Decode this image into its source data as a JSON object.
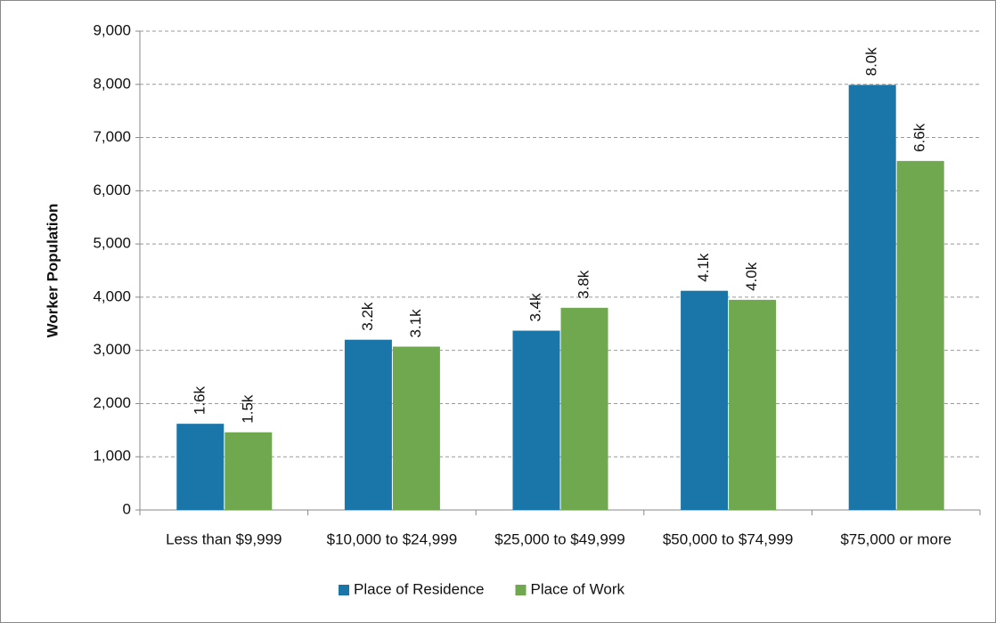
{
  "chart_data": {
    "type": "bar",
    "ylabel": "Worker Population",
    "categories": [
      "Less than $9,999",
      "$10,000 to $24,999",
      "$25,000 to $49,999",
      "$50,000 to $74,999",
      "$75,000 or more"
    ],
    "series": [
      {
        "name": "Place of Residence",
        "color": "#1a75a8",
        "values": [
          1620,
          3200,
          3370,
          4120,
          7990
        ],
        "value_labels": [
          "1.6k",
          "3.2k",
          "3.4k",
          "4.1k",
          "8.0k"
        ]
      },
      {
        "name": "Place of Work",
        "color": "#70a84f",
        "values": [
          1460,
          3070,
          3800,
          3950,
          6560
        ],
        "value_labels": [
          "1.5k",
          "3.1k",
          "3.8k",
          "4.0k",
          "6.6k"
        ]
      }
    ],
    "ylim": [
      0,
      9000
    ],
    "yticks": [
      0,
      {
        "value": 1000,
        "label": "1,000"
      },
      {
        "value": 2000,
        "label": "2,000"
      },
      {
        "value": 3000,
        "label": "3,000"
      },
      {
        "value": 4000,
        "label": "4,000"
      },
      {
        "value": 5000,
        "label": "5,000"
      },
      {
        "value": 6000,
        "label": "6,000"
      },
      {
        "value": 7000,
        "label": "7,000"
      },
      {
        "value": 8000,
        "label": "8,000"
      },
      {
        "value": 9000,
        "label": "9,000"
      }
    ],
    "grid": true,
    "legend": "bottom"
  }
}
